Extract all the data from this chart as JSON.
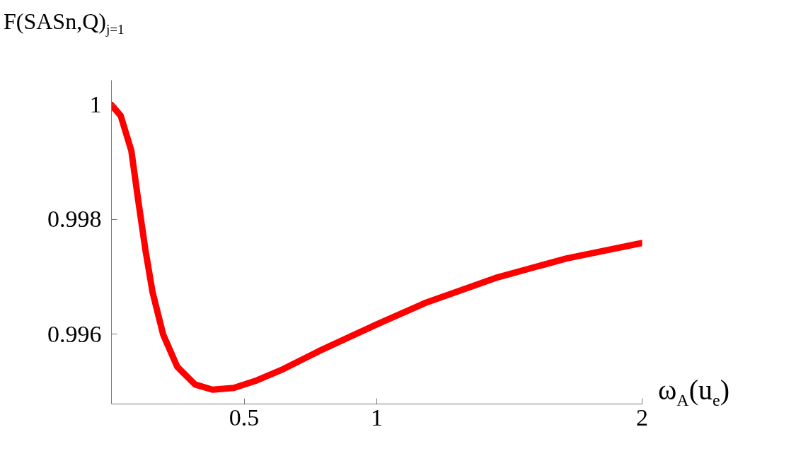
{
  "chart_data": {
    "type": "line",
    "ylabel": "F(SASn,Q)$_{j=1}$",
    "xlabel": "ω$_{A}$(u$_{e}$)",
    "x": [
      0,
      0.035,
      0.075,
      0.101,
      0.128,
      0.155,
      0.195,
      0.248,
      0.315,
      0.381,
      0.461,
      0.541,
      0.648,
      0.781,
      1.0,
      1.181,
      1.448,
      1.715,
      2.0
    ],
    "series": [
      {
        "color": "#ff0000",
        "values": [
          1.0,
          0.99981,
          0.9992,
          0.99833,
          0.99747,
          0.99673,
          0.99599,
          0.99543,
          0.99512,
          0.99503,
          0.99506,
          0.99518,
          0.99539,
          0.9957,
          0.99617,
          0.99654,
          0.99698,
          0.99732,
          0.99759
        ]
      }
    ],
    "xlim": [
      0,
      2
    ],
    "ylim": [
      0.99478,
      1.00043
    ],
    "xticks": [
      0.5,
      1,
      2
    ],
    "yticks": [
      0.996,
      0.998,
      1
    ],
    "grid": false,
    "marker": "none",
    "line_style": "solid"
  }
}
